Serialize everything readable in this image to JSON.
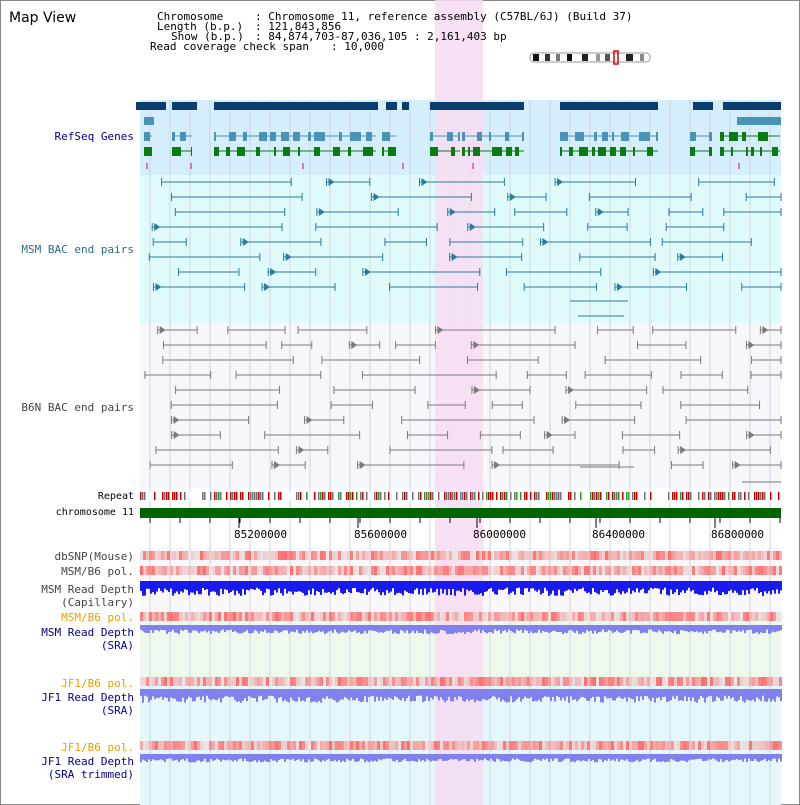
{
  "header": {
    "title": "Map View",
    "chromosome_key": "Chromosome",
    "chromosome_value": ": Chromosome 11, reference assembly (C57BL/6J) (Build 37)",
    "length_key": "Length (b.p.)",
    "length_value": ": 121,843,856",
    "show_key": "Show (b.p.)",
    "show_value": ": 84,874,703-87,036,105 : 2,161,403 bp",
    "coverage_key": "Read coverage check span",
    "coverage_value": ": 10,000"
  },
  "tracks": {
    "refseq": "RefSeq Genes",
    "msm_bac": "MSM BAC end pairs",
    "b6n_bac": "B6N BAC end pairs",
    "repeat": "Repeat",
    "chromosome": "chromosome 11",
    "dbsnp": "dbSNP(Mouse)",
    "msm_b6_pol_1": "MSM/B6 pol.",
    "msm_depth_cap_1": "MSM Read Depth",
    "msm_depth_cap_2": "(Capillary)",
    "msm_b6_pol_2": "MSM/B6 pol.",
    "msm_depth_sra_1": "MSM Read Depth",
    "msm_depth_sra_2": "(SRA)",
    "jf1_b6_pol_1": "JF1/B6 pol.",
    "jf1_depth_sra_1": "JF1 Read Depth",
    "jf1_depth_sra_2": "(SRA)",
    "jf1_b6_pol_2": "JF1/B6 pol.",
    "jf1_depth_trim_1": "JF1 Read Depth",
    "jf1_depth_trim_2": "(SRA trimmed)"
  },
  "axis_ticks": [
    "85200000",
    "85600000",
    "86000000",
    "86400000",
    "86800000"
  ],
  "colors": {
    "refseq_band": "#d5eefb",
    "msm_band": "#e0fbfb",
    "b6n_band": "#f5f7fb",
    "highlight": "#f7dcf2",
    "gene_navy": "#0b3d6e",
    "gene_blue": "#4a92b8",
    "gene_green": "#0a7a12",
    "msm_pair": "#2a7a9a",
    "b6n_pair": "#7a7a7a",
    "chromosome": "#006400",
    "snp_red": "#e03030",
    "depth_blue": "#1a1aee",
    "depth_light": "#8080ee"
  }
}
